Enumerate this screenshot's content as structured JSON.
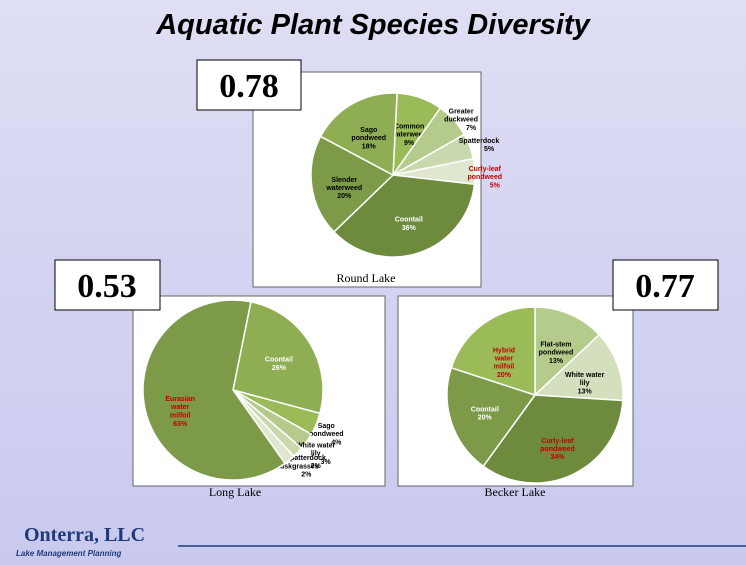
{
  "title": "Aquatic Plant Species Diversity",
  "logo": {
    "name": "Onterra, LLC",
    "tagline": "Lake Management Planning"
  },
  "chart_data": [
    {
      "type": "pie",
      "title": "Round Lake",
      "index": 0.78,
      "categories": [
        "Common waterweed",
        "Greater duckweed",
        "Spatterdock",
        "Curly-leaf pondweed",
        "Coontail",
        "Slender waterweed",
        "Sago pondweed"
      ],
      "values": [
        9,
        7,
        5,
        5,
        36,
        20,
        18
      ],
      "value_labels": [
        "9%",
        "7%",
        "5%",
        "5%",
        "36%",
        "20%",
        "18%"
      ],
      "colors": [
        "#9bbb59",
        "#b5cb8c",
        "#c9d8ad",
        "#dfe7cf",
        "#6e8b3d",
        "#7c9a47",
        "#8fad52"
      ],
      "label_colors": [
        "#000000",
        "#000000",
        "#000000",
        "#c00000",
        "#ffffff",
        "#000000",
        "#000000"
      ]
    },
    {
      "type": "pie",
      "title": "Long Lake",
      "index": 0.53,
      "categories": [
        "Coontail",
        "Sago pondweed",
        "White water lily",
        "Spatterdock",
        "Muskgrasses",
        "Eurasian water milfoil"
      ],
      "values": [
        26,
        4,
        3,
        2,
        2,
        63
      ],
      "value_labels": [
        "26%",
        "4%",
        "3%",
        "2%",
        "2%",
        "63%"
      ],
      "colors": [
        "#8fad52",
        "#9bbb59",
        "#b5cb8c",
        "#c9d8ad",
        "#dfe7cf",
        "#7c9a47"
      ],
      "label_colors": [
        "#ffffff",
        "#000000",
        "#000000",
        "#000000",
        "#000000",
        "#c00000"
      ]
    },
    {
      "type": "pie",
      "title": "Becker Lake",
      "index": 0.77,
      "categories": [
        "Flat-stem pondweed",
        "White water lily",
        "Curly-leaf pondweed",
        "Coontail",
        "Hybrid water milfoil"
      ],
      "values": [
        13,
        13,
        34,
        20,
        20
      ],
      "value_labels": [
        "13%",
        "13%",
        "34%",
        "20%",
        "20%"
      ],
      "colors": [
        "#b5cb8c",
        "#d3dfbd",
        "#6e8b3d",
        "#7c9a47",
        "#9bbb59"
      ],
      "label_colors": [
        "#000000",
        "#000000",
        "#c00000",
        "#ffffff",
        "#c00000"
      ]
    }
  ]
}
